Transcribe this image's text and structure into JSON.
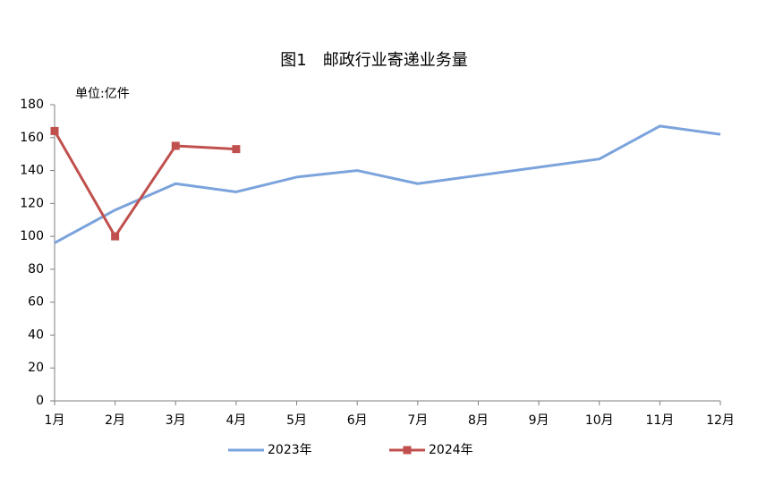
{
  "chart_data": {
    "type": "line",
    "title": "图1　邮政行业寄递业务量",
    "y_label": "单位:亿件",
    "categories": [
      "1月",
      "2月",
      "3月",
      "4月",
      "5月",
      "6月",
      "7月",
      "8月",
      "9月",
      "10月",
      "11月",
      "12月"
    ],
    "series": [
      {
        "name": "2023年",
        "color": "#7ba3dc",
        "marker": "none",
        "values": [
          96,
          116,
          132,
          127,
          136,
          140,
          132,
          137,
          142,
          147,
          167,
          162
        ]
      },
      {
        "name": "2024年",
        "color": "#c0504d",
        "marker": "square",
        "values": [
          164,
          100,
          155,
          153,
          null,
          null,
          null,
          null,
          null,
          null,
          null,
          null
        ]
      }
    ],
    "ylim": [
      0,
      180
    ],
    "yticks": [
      0,
      20,
      40,
      60,
      80,
      100,
      120,
      140,
      160,
      180
    ],
    "grid": false,
    "legend": "bottom"
  }
}
